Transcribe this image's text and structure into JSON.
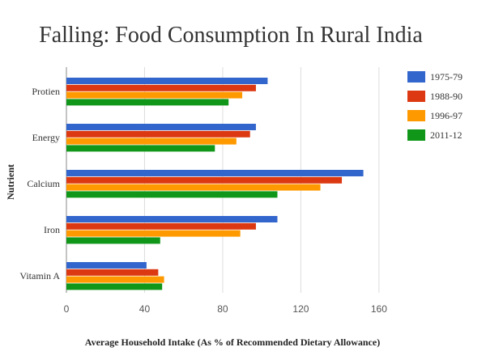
{
  "chart_data": {
    "type": "bar",
    "orientation": "horizontal",
    "title": "Falling: Food Consumption In Rural India",
    "xlabel": "Average Household Intake (As % of Recommended Dietary Allowance)",
    "ylabel": "Nutrient",
    "xlim": [
      0,
      170
    ],
    "xticks": [
      0,
      40,
      80,
      120,
      160
    ],
    "grid": true,
    "legend_position": "right",
    "categories": [
      "Protien",
      "Energy",
      "Calcium",
      "Iron",
      "Vitamin A"
    ],
    "series": [
      {
        "name": "1975-79",
        "color": "#3366cc",
        "values": [
          103,
          97,
          152,
          108,
          41
        ]
      },
      {
        "name": "1988-90",
        "color": "#dc3912",
        "values": [
          97,
          94,
          141,
          97,
          47
        ]
      },
      {
        "name": "1996-97",
        "color": "#ff9900",
        "values": [
          90,
          87,
          130,
          89,
          50
        ]
      },
      {
        "name": "2011-12",
        "color": "#109618",
        "values": [
          83,
          76,
          108,
          48,
          49
        ]
      }
    ]
  }
}
